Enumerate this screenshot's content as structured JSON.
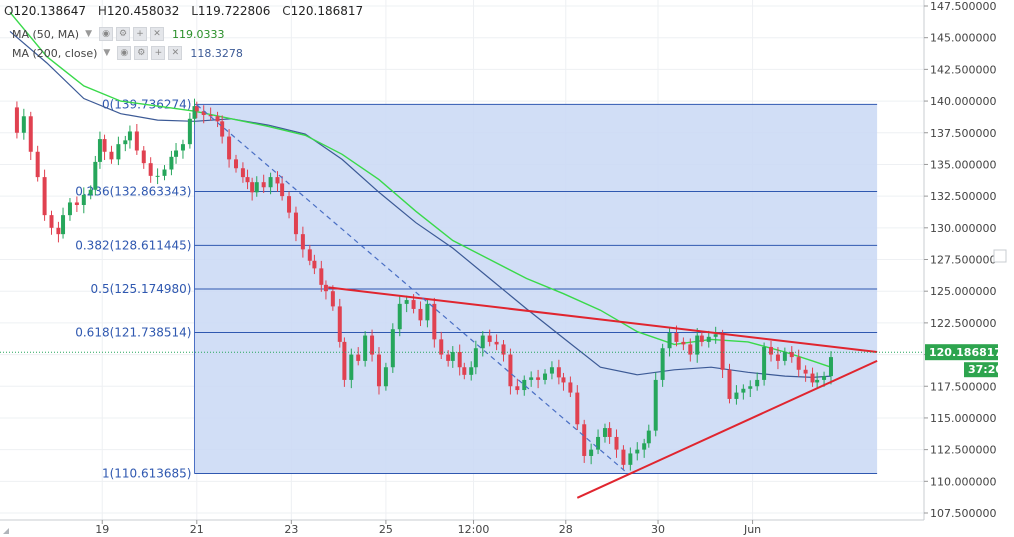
{
  "header": {
    "ohlc": [
      {
        "key": "O",
        "value": "120.138647"
      },
      {
        "key": "H",
        "value": "120.458032"
      },
      {
        "key": "L",
        "value": "119.722806"
      },
      {
        "key": "C",
        "value": "120.186817"
      }
    ],
    "indicators": [
      {
        "label": "MA (50, MA)",
        "value": "119.0333",
        "color": "#00b050"
      },
      {
        "label": "MA (200, close)",
        "value": "118.3278",
        "color": "#3c5a96"
      }
    ]
  },
  "chart_data": {
    "type": "candlestick",
    "title": "",
    "xlabel": "",
    "ylabel": "",
    "ylim": [
      107.5,
      147.5
    ],
    "y_ticks": [
      "147.500000",
      "145.000000",
      "142.500000",
      "140.000000",
      "137.500000",
      "135.000000",
      "132.500000",
      "130.000000",
      "127.500000",
      "125.000000",
      "122.500000",
      "120.000000",
      "117.500000",
      "115.000000",
      "112.500000",
      "110.000000",
      "107.500000"
    ],
    "x_ticks": [
      "19",
      "21",
      "23",
      "25",
      "12:00",
      "28",
      "30",
      "Jun"
    ],
    "last_price_label": "120.186817",
    "countdown_label": "37:20",
    "fibonacci": [
      {
        "ratio": "0",
        "level": 139.736274,
        "label": "0(139.736274)"
      },
      {
        "ratio": "0.236",
        "level": 132.863343,
        "label": "0.236(132.863343)"
      },
      {
        "ratio": "0.382",
        "level": 128.611445,
        "label": "0.382(128.611445)"
      },
      {
        "ratio": "0.5",
        "level": 125.17498,
        "label": "0.5(125.174980)"
      },
      {
        "ratio": "0.618",
        "level": 121.738514,
        "label": "0.618(121.738514)"
      },
      {
        "ratio": "1",
        "level": 110.613685,
        "label": "1(110.613685)"
      }
    ],
    "close_path": [
      [
        0.0,
        139.5
      ],
      [
        0.15,
        137.5
      ],
      [
        0.3,
        138.8
      ],
      [
        0.45,
        136.0
      ],
      [
        0.6,
        134.0
      ],
      [
        0.75,
        131.0
      ],
      [
        0.9,
        130.0
      ],
      [
        1.05,
        129.5
      ],
      [
        1.15,
        131.0
      ],
      [
        1.3,
        132.0
      ],
      [
        1.45,
        131.8
      ],
      [
        1.6,
        132.6
      ],
      [
        1.75,
        133.0
      ],
      [
        1.85,
        135.2
      ],
      [
        1.95,
        137.0
      ],
      [
        2.05,
        136.0
      ],
      [
        2.2,
        135.4
      ],
      [
        2.35,
        136.6
      ],
      [
        2.5,
        136.9
      ],
      [
        2.6,
        137.6
      ],
      [
        2.75,
        136.1
      ],
      [
        2.9,
        135.1
      ],
      [
        3.05,
        134.1
      ],
      [
        3.2,
        134.1
      ],
      [
        3.35,
        134.6
      ],
      [
        3.5,
        135.6
      ],
      [
        3.6,
        136.1
      ],
      [
        3.75,
        136.6
      ],
      [
        3.9,
        138.6
      ],
      [
        4.0,
        139.6
      ],
      [
        4.05,
        139.2
      ],
      [
        4.2,
        138.9
      ],
      [
        4.35,
        138.8
      ],
      [
        4.5,
        138.4
      ],
      [
        4.6,
        137.2
      ],
      [
        4.75,
        135.4
      ],
      [
        4.9,
        134.7
      ],
      [
        5.05,
        134.0
      ],
      [
        5.15,
        133.6
      ],
      [
        5.25,
        132.8
      ],
      [
        5.35,
        133.6
      ],
      [
        5.5,
        133.2
      ],
      [
        5.65,
        134.0
      ],
      [
        5.8,
        133.5
      ],
      [
        5.9,
        132.5
      ],
      [
        6.05,
        131.2
      ],
      [
        6.2,
        129.5
      ],
      [
        6.35,
        128.3
      ],
      [
        6.5,
        127.4
      ],
      [
        6.6,
        126.8
      ],
      [
        6.75,
        125.5
      ],
      [
        6.85,
        125.0
      ],
      [
        7.0,
        123.8
      ],
      [
        7.15,
        121.0
      ],
      [
        7.25,
        118.0
      ],
      [
        7.4,
        120.0
      ],
      [
        7.55,
        119.5
      ],
      [
        7.7,
        121.5
      ],
      [
        7.85,
        120.0
      ],
      [
        8.0,
        117.5
      ],
      [
        8.15,
        119.0
      ],
      [
        8.3,
        122.0
      ],
      [
        8.45,
        124.0
      ],
      [
        8.6,
        124.3
      ],
      [
        8.75,
        123.6
      ],
      [
        8.9,
        122.7
      ],
      [
        9.05,
        124.0
      ],
      [
        9.2,
        121.2
      ],
      [
        9.35,
        120.0
      ],
      [
        9.5,
        119.5
      ],
      [
        9.6,
        120.2
      ],
      [
        9.75,
        119.0
      ],
      [
        9.85,
        118.4
      ],
      [
        10.0,
        119.0
      ],
      [
        10.1,
        120.5
      ],
      [
        10.25,
        121.5
      ],
      [
        10.4,
        121.0
      ],
      [
        10.55,
        120.8
      ],
      [
        10.7,
        120.0
      ],
      [
        10.85,
        117.5
      ],
      [
        11.0,
        117.2
      ],
      [
        11.15,
        118.0
      ],
      [
        11.3,
        118.2
      ],
      [
        11.45,
        118.0
      ],
      [
        11.6,
        118.5
      ],
      [
        11.75,
        119.0
      ],
      [
        11.9,
        118.2
      ],
      [
        12.0,
        117.8
      ],
      [
        12.15,
        117.0
      ],
      [
        12.3,
        114.5
      ],
      [
        12.45,
        112.0
      ],
      [
        12.6,
        112.5
      ],
      [
        12.75,
        113.5
      ],
      [
        12.9,
        114.2
      ],
      [
        13.0,
        113.5
      ],
      [
        13.15,
        112.5
      ],
      [
        13.3,
        111.3
      ],
      [
        13.45,
        112.2
      ],
      [
        13.6,
        112.5
      ],
      [
        13.75,
        113.0
      ],
      [
        13.85,
        114.0
      ],
      [
        14.0,
        118.0
      ],
      [
        14.15,
        120.5
      ],
      [
        14.3,
        121.7
      ],
      [
        14.45,
        121.0
      ],
      [
        14.6,
        120.8
      ],
      [
        14.75,
        120.0
      ],
      [
        14.9,
        121.5
      ],
      [
        15.0,
        121.0
      ],
      [
        15.15,
        121.4
      ],
      [
        15.3,
        121.6
      ],
      [
        15.45,
        118.8
      ],
      [
        15.6,
        116.5
      ],
      [
        15.75,
        117.0
      ],
      [
        15.9,
        117.3
      ],
      [
        16.05,
        117.5
      ],
      [
        16.2,
        118.0
      ],
      [
        16.35,
        120.6
      ],
      [
        16.5,
        120.0
      ],
      [
        16.65,
        119.5
      ],
      [
        16.8,
        120.2
      ],
      [
        16.95,
        119.8
      ],
      [
        17.1,
        118.8
      ],
      [
        17.25,
        118.5
      ],
      [
        17.4,
        117.8
      ],
      [
        17.5,
        118.0
      ],
      [
        17.65,
        118.3
      ],
      [
        17.8,
        119.8
      ]
    ],
    "ma50": [
      [
        0.0,
        147.0
      ],
      [
        0.8,
        143.5
      ],
      [
        1.6,
        141.2
      ],
      [
        2.4,
        140.0
      ],
      [
        3.2,
        139.6
      ],
      [
        4.0,
        139.2
      ],
      [
        4.8,
        138.6
      ],
      [
        5.6,
        138.0
      ],
      [
        6.4,
        137.3
      ],
      [
        7.2,
        135.8
      ],
      [
        8.0,
        133.8
      ],
      [
        8.8,
        131.3
      ],
      [
        9.6,
        129.0
      ],
      [
        10.4,
        127.5
      ],
      [
        11.2,
        126.0
      ],
      [
        12.0,
        124.8
      ],
      [
        12.8,
        123.5
      ],
      [
        13.6,
        121.8
      ],
      [
        14.4,
        120.8
      ],
      [
        15.2,
        121.2
      ],
      [
        16.0,
        121.0
      ],
      [
        16.8,
        120.2
      ],
      [
        17.4,
        119.5
      ],
      [
        17.8,
        119.0
      ]
    ],
    "ma200": [
      [
        0.0,
        145.5
      ],
      [
        0.8,
        143.0
      ],
      [
        1.6,
        140.2
      ],
      [
        2.4,
        139.0
      ],
      [
        3.2,
        138.5
      ],
      [
        4.0,
        138.4
      ],
      [
        4.8,
        138.6
      ],
      [
        5.6,
        138.1
      ],
      [
        6.4,
        137.4
      ],
      [
        7.2,
        135.4
      ],
      [
        8.0,
        132.8
      ],
      [
        8.8,
        130.4
      ],
      [
        9.6,
        128.4
      ],
      [
        10.4,
        126.0
      ],
      [
        11.2,
        123.6
      ],
      [
        12.0,
        121.3
      ],
      [
        12.8,
        119.0
      ],
      [
        13.6,
        118.4
      ],
      [
        14.4,
        118.8
      ],
      [
        15.2,
        119.0
      ],
      [
        16.0,
        118.6
      ],
      [
        16.8,
        118.3
      ],
      [
        17.4,
        118.2
      ],
      [
        17.8,
        118.3
      ]
    ],
    "trendlines": [
      {
        "name": "descending-resistance",
        "color": "#e0252f",
        "points": [
          [
            6.9,
            125.3
          ],
          [
            18.8,
            120.2
          ]
        ]
      },
      {
        "name": "ascending-support",
        "color": "#e0252f",
        "points": [
          [
            12.3,
            108.7
          ],
          [
            18.8,
            119.5
          ]
        ]
      },
      {
        "name": "fib-diagonal",
        "color": "#4a6fc4",
        "dashed": true,
        "points": [
          [
            4.05,
            139.7
          ],
          [
            13.4,
            110.6
          ]
        ]
      }
    ],
    "fib_range": {
      "x_start": 4.0,
      "x_end": 18.8
    }
  }
}
